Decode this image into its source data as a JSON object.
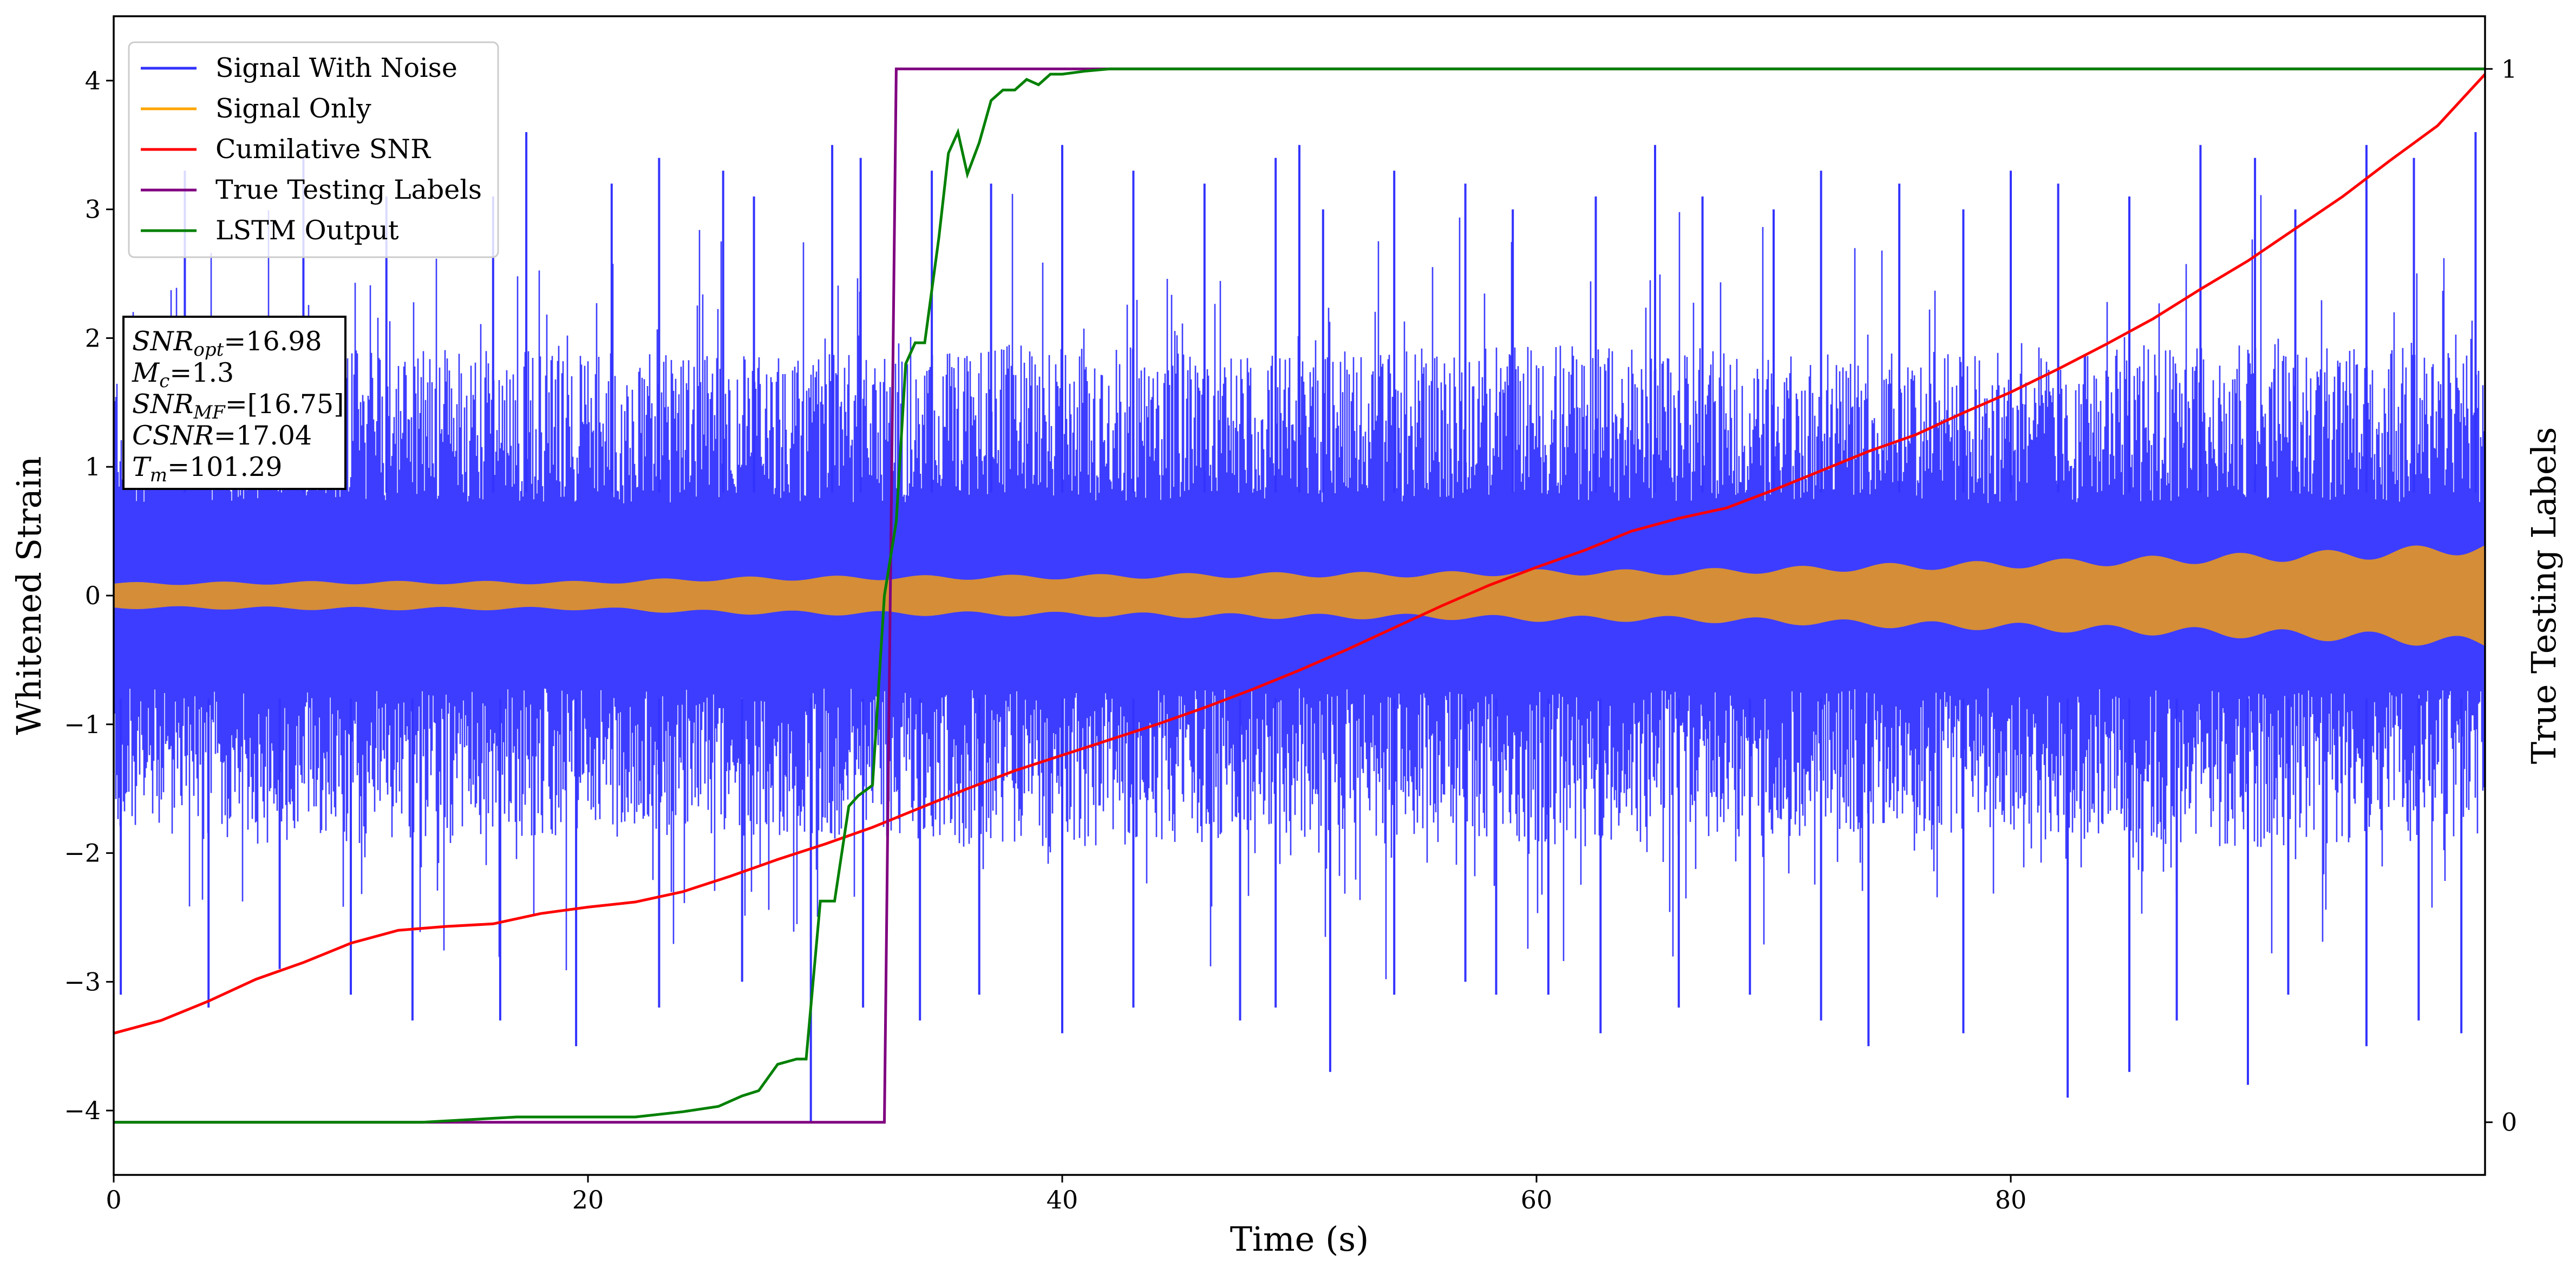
{
  "chart_data": {
    "type": "line",
    "title": "",
    "xlabel": "Time (s)",
    "ylabel": "Whitened Strain",
    "y2label": "True Testing Labels",
    "xlim": [
      0,
      100
    ],
    "ylim": [
      -4.5,
      4.5
    ],
    "y2lim": [
      -0.05,
      1.05
    ],
    "x_ticks": [
      0,
      20,
      40,
      60,
      80
    ],
    "y_ticks": [
      -4,
      -3,
      -2,
      -1,
      0,
      1,
      2,
      3,
      4
    ],
    "y2_ticks": [
      0,
      1
    ],
    "grid": false,
    "legend_position": "top-left",
    "series": [
      {
        "name": "Signal With Noise",
        "color": "#3333ff",
        "axis": "left",
        "envelope_low_x": [
          0,
          10,
          20,
          30,
          40,
          50,
          60,
          70,
          80,
          90,
          100
        ],
        "envelope_low": [
          -1.3,
          -1.35,
          -1.3,
          -1.3,
          -1.35,
          -1.3,
          -1.35,
          -1.3,
          -1.3,
          -1.35,
          -1.3
        ],
        "envelope_high": [
          1.3,
          1.35,
          1.3,
          1.3,
          1.35,
          1.3,
          1.35,
          1.3,
          1.3,
          1.35,
          1.3
        ],
        "peaks_x": [
          3,
          8,
          11.5,
          16,
          17.4,
          21,
          23,
          25.7,
          27,
          30.3,
          31.5,
          34.5,
          37,
          40,
          43,
          46,
          49,
          50,
          51,
          54,
          57,
          59,
          62.5,
          65,
          67,
          70,
          72,
          75.3,
          78,
          80,
          82,
          85,
          88,
          90.3,
          92,
          95,
          97,
          99.6
        ],
        "peaks_y": [
          3.3,
          3.4,
          3.1,
          3.1,
          3.6,
          3.2,
          3.4,
          3.3,
          3.1,
          3.5,
          3.4,
          3.3,
          3.2,
          3.5,
          3.3,
          3.2,
          3.4,
          3.5,
          3.0,
          3.3,
          3.2,
          3.0,
          3.1,
          3.5,
          3.1,
          3.0,
          3.3,
          3.2,
          3.0,
          3.3,
          3.2,
          3.1,
          3.5,
          3.4,
          3.0,
          3.5,
          3.4,
          3.6
        ],
        "troughs_x": [
          0.3,
          4,
          7,
          10,
          12.6,
          16.3,
          19.5,
          23,
          26.5,
          29.4,
          31.6,
          34,
          36.5,
          40,
          43,
          47.5,
          49,
          51.3,
          54,
          57,
          58.3,
          60.5,
          62.7,
          66,
          69,
          72,
          74,
          78,
          82.4,
          85,
          87,
          90,
          91.7,
          95,
          97.2,
          99
        ],
        "troughs_y": [
          -3.1,
          -3.2,
          -2.9,
          -3.1,
          -3.3,
          -3.3,
          -3.5,
          -3.2,
          -3.0,
          -4.1,
          -3.2,
          -3.3,
          -3.1,
          -3.4,
          -3.2,
          -3.3,
          -3.2,
          -3.7,
          -3.1,
          -3.0,
          -3.1,
          -3.1,
          -3.4,
          -3.2,
          -3.1,
          -3.3,
          -3.5,
          -3.4,
          -3.9,
          -3.7,
          -3.3,
          -3.8,
          -3.1,
          -3.5,
          -3.3,
          -3.4
        ]
      },
      {
        "name": "Signal Only",
        "color": "#ffa500",
        "fill_color": "#d58d38",
        "axis": "left",
        "amplitude_x": [
          0,
          10,
          20,
          25,
          30,
          40,
          50,
          55,
          60,
          65,
          70,
          75,
          80,
          85,
          90,
          95,
          100
        ],
        "amplitude": [
          0.1,
          0.11,
          0.11,
          0.14,
          0.15,
          0.16,
          0.18,
          0.18,
          0.2,
          0.2,
          0.22,
          0.25,
          0.27,
          0.3,
          0.33,
          0.36,
          0.42
        ]
      },
      {
        "name": "Cumilative SNR",
        "color": "#ff0000",
        "axis": "left",
        "x": [
          0,
          2,
          4,
          6,
          8,
          10,
          12,
          14,
          16,
          18,
          20,
          22,
          24,
          26,
          28,
          30,
          32,
          34,
          36,
          38,
          40,
          42,
          44,
          46,
          48,
          50,
          52,
          54,
          56,
          58,
          60,
          62,
          64,
          66,
          68,
          70,
          72,
          74,
          76,
          78,
          80,
          82,
          84,
          86,
          88,
          90,
          92,
          94,
          96,
          98,
          100
        ],
        "y": [
          -3.4,
          -3.3,
          -3.15,
          -2.98,
          -2.85,
          -2.7,
          -2.6,
          -2.57,
          -2.55,
          -2.47,
          -2.42,
          -2.38,
          -2.3,
          -2.18,
          -2.05,
          -1.93,
          -1.8,
          -1.65,
          -1.5,
          -1.36,
          -1.24,
          -1.12,
          -1.0,
          -0.87,
          -0.73,
          -0.58,
          -0.42,
          -0.25,
          -0.08,
          0.08,
          0.22,
          0.35,
          0.5,
          0.6,
          0.68,
          0.82,
          0.97,
          1.12,
          1.25,
          1.42,
          1.58,
          1.76,
          1.95,
          2.15,
          2.38,
          2.6,
          2.85,
          3.1,
          3.38,
          3.65,
          4.05
        ]
      },
      {
        "name": "True Testing Labels",
        "color": "#800080",
        "axis": "right",
        "x": [
          0,
          32.5,
          33,
          100
        ],
        "y": [
          0,
          0,
          1,
          1
        ]
      },
      {
        "name": "LSTM Output",
        "color": "#008000",
        "axis": "right",
        "x": [
          0,
          13,
          17,
          22,
          24,
          25.5,
          26.5,
          27.2,
          28,
          28.8,
          29.2,
          29.8,
          30.4,
          31,
          31.4,
          32,
          32.5,
          33,
          33.4,
          33.8,
          34.2,
          34.8,
          35.2,
          35.6,
          36,
          36.5,
          37,
          37.5,
          38,
          38.5,
          39,
          39.5,
          40,
          41,
          42,
          44,
          46,
          50,
          60,
          100
        ],
        "y": [
          0,
          0,
          0.005,
          0.005,
          0.01,
          0.015,
          0.025,
          0.03,
          0.055,
          0.06,
          0.06,
          0.21,
          0.21,
          0.3,
          0.31,
          0.32,
          0.5,
          0.57,
          0.72,
          0.74,
          0.74,
          0.84,
          0.92,
          0.94,
          0.9,
          0.93,
          0.97,
          0.98,
          0.98,
          0.99,
          0.985,
          0.995,
          0.995,
          0.998,
          1,
          1,
          1,
          1,
          1,
          1
        ]
      }
    ],
    "annotation": [
      {
        "base": "SNR",
        "sub": "opt",
        "value": "=16.98"
      },
      {
        "base": "M",
        "sub": "c",
        "value": "=1.3"
      },
      {
        "base": "SNR",
        "sub": "MF",
        "value": "=[16.75]"
      },
      {
        "base": "CSNR",
        "sub": "",
        "value": "=17.04"
      },
      {
        "base": "T",
        "sub": "m",
        "value": "=101.29"
      }
    ]
  }
}
